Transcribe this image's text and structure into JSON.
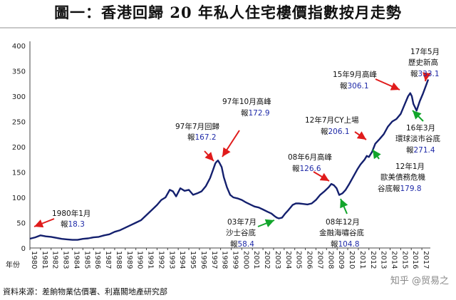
{
  "chart_data": {
    "type": "line",
    "title": "圖一：香港回歸 20 年私人住宅樓價指數按月走勢",
    "xlabel": "年份",
    "ylabel": "",
    "ylim": [
      0,
      400
    ],
    "yticks": [
      0,
      50,
      100,
      150,
      200,
      250,
      300,
      350,
      400
    ],
    "xticks": [
      "1980",
      "1981",
      "1982",
      "1983",
      "1984",
      "1985",
      "1986",
      "1987",
      "1988",
      "1989",
      "1990",
      "1991",
      "1992",
      "1993",
      "1994",
      "1995",
      "1996",
      "1997",
      "1998",
      "1999",
      "2000",
      "2001",
      "2002",
      "2003",
      "2004",
      "2005",
      "2006",
      "2007",
      "2008",
      "2009",
      "2010",
      "2011",
      "2012",
      "2013",
      "2014",
      "2015",
      "2016",
      "2017"
    ],
    "xrange": [
      1980,
      2017.8
    ],
    "grid": false,
    "line_color": "#14206e",
    "series": [
      {
        "name": "",
        "x": [
          1980.0,
          1980.5,
          1981.0,
          1981.5,
          1982.0,
          1982.5,
          1983.0,
          1983.5,
          1984.0,
          1984.5,
          1985.0,
          1985.5,
          1986.0,
          1986.5,
          1987.0,
          1987.5,
          1988.0,
          1988.5,
          1989.0,
          1989.5,
          1990.0,
          1990.5,
          1991.0,
          1991.5,
          1992.0,
          1992.4,
          1992.8,
          1993.2,
          1993.5,
          1993.8,
          1994.2,
          1994.6,
          1995.0,
          1995.4,
          1995.8,
          1996.2,
          1996.6,
          1997.0,
          1997.3,
          1997.5,
          1997.6,
          1997.75,
          1997.9,
          1998.1,
          1998.3,
          1998.6,
          1998.9,
          1999.2,
          1999.6,
          2000.0,
          2000.4,
          2000.8,
          2001.2,
          2001.6,
          2002.0,
          2002.4,
          2002.8,
          2003.1,
          2003.3,
          2003.5,
          2003.8,
          2004.1,
          2004.4,
          2004.8,
          2005.1,
          2005.4,
          2005.8,
          2006.2,
          2006.6,
          2007.0,
          2007.4,
          2007.8,
          2008.2,
          2008.45,
          2008.7,
          2008.95,
          2009.2,
          2009.5,
          2009.8,
          2010.1,
          2010.5,
          2010.9,
          2011.2,
          2011.6,
          2011.8,
          2012.0,
          2012.3,
          2012.6,
          2013.0,
          2013.4,
          2013.8,
          2014.2,
          2014.6,
          2015.0,
          2015.4,
          2015.7,
          2015.9,
          2016.05,
          2016.2,
          2016.5,
          2016.8,
          2017.1,
          2017.4,
          2017.6
        ],
        "y": [
          18.3,
          21,
          25,
          23,
          22,
          20,
          18,
          17,
          16,
          16,
          18,
          19,
          21,
          22,
          25,
          27,
          32,
          35,
          40,
          45,
          50,
          55,
          65,
          75,
          85,
          95,
          100,
          115,
          112,
          102,
          118,
          113,
          115,
          105,
          108,
          112,
          122,
          138,
          155,
          167.2,
          170,
          172.9,
          168,
          160,
          140,
          120,
          105,
          100,
          98,
          95,
          90,
          86,
          82,
          80,
          76,
          72,
          68,
          63,
          60,
          58.4,
          60,
          68,
          75,
          85,
          88,
          88,
          87,
          86,
          88,
          95,
          105,
          112,
          120,
          126.6,
          124,
          118,
          104.8,
          108,
          115,
          125,
          140,
          155,
          165,
          175,
          182,
          179.8,
          190,
          206.1,
          215,
          225,
          240,
          250,
          255,
          265,
          285,
          300,
          306.1,
          300,
          285,
          271.4,
          290,
          305,
          322,
          333.1
        ]
      }
    ],
    "annotations": [
      {
        "text": "1980年1月",
        "value": "18.3"
      },
      {
        "text": "97年7月回歸",
        "value": "167.2"
      },
      {
        "text": "97年10月高峰",
        "value": "172.9"
      },
      {
        "text": "03年7月沙士谷底",
        "value": "58.4"
      },
      {
        "text": "08年6月高峰",
        "value": "126.6"
      },
      {
        "text": "08年12月金融海嘯谷底",
        "value": "104.8"
      },
      {
        "text": "12年1月歐美債務危機谷底",
        "value": "179.8"
      },
      {
        "text": "12年7月CY上場",
        "value": "206.1"
      },
      {
        "text": "15年9月高峰",
        "value": "306.1"
      },
      {
        "text": "16年3月環球淡市谷底",
        "value": "271.4"
      },
      {
        "text": "17年5月歷史新高",
        "value": "333.1"
      }
    ]
  },
  "labels": {
    "bao": "報",
    "ann1_a": "1980年1月",
    "ann2_a": "97年7月回歸",
    "ann3_a": "97年10月高峰",
    "ann4_a": "03年7月",
    "ann4_b": "沙士谷底",
    "ann5_a": "08年6月高峰",
    "ann6_a": "08年12月",
    "ann6_b": "金融海嘯谷底",
    "ann7_a": "12年1月",
    "ann7_b": "歐美債務危機",
    "ann7_c": "谷底報",
    "ann8_a": "12年7月CY上場",
    "ann9_a": "15年9月高峰",
    "ann10_a": "16年3月",
    "ann10_b": "環球淡市谷底",
    "ann11_a": "17年5月",
    "ann11_b": "歷史新高"
  },
  "source": "資料來源：差餉物業估價署、利嘉閣地產研究部",
  "watermark": "知乎 @贸易之"
}
